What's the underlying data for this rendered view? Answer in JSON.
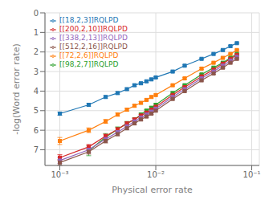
{
  "chart_data": {
    "type": "line",
    "xlabel": "Physical error rate",
    "ylabel": "-log(Word error rate)",
    "log": "x",
    "xlim": [
      0.0007,
      0.12
    ],
    "xticks": [
      {
        "value": 0.001,
        "label": "10⁻³"
      },
      {
        "value": 0.01,
        "label": "10⁻²"
      },
      {
        "value": 0.1,
        "label": "10⁻¹"
      }
    ],
    "ylim": [
      7.8,
      0.0
    ],
    "yticks": [
      0,
      1,
      2,
      3,
      4,
      5,
      6,
      7
    ],
    "grid": true,
    "legend": "upper left",
    "marker": "square",
    "series": [
      {
        "name": "[[18,2,3]]RQLPD",
        "color": "#1f77b4",
        "x": [
          0.001,
          0.002,
          0.003,
          0.004,
          0.005,
          0.006,
          0.007,
          0.008,
          0.009,
          0.01,
          0.015,
          0.02,
          0.03,
          0.04,
          0.05,
          0.06,
          0.07
        ],
        "values": [
          5.15,
          4.7,
          4.3,
          4.1,
          3.9,
          3.7,
          3.6,
          3.5,
          3.4,
          3.3,
          3.0,
          2.7,
          2.35,
          2.1,
          1.9,
          1.7,
          1.55
        ],
        "yerr": [
          0.08,
          0.07,
          0.06,
          0.06,
          0.05,
          0.05,
          0.04,
          0.04,
          0.04,
          0.04,
          0.04,
          0.04,
          0.04,
          0.04,
          0.04,
          0.04,
          0.04
        ]
      },
      {
        "name": "[[72,2,6]]RQLPD",
        "color": "#ff7f0e",
        "x": [
          0.001,
          0.002,
          0.003,
          0.004,
          0.005,
          0.006,
          0.007,
          0.008,
          0.009,
          0.01,
          0.015,
          0.02,
          0.03,
          0.04,
          0.05,
          0.06,
          0.07
        ],
        "values": [
          6.55,
          6.0,
          5.55,
          5.2,
          4.95,
          4.75,
          4.6,
          4.45,
          4.3,
          4.2,
          3.7,
          3.35,
          2.85,
          2.55,
          2.3,
          2.1,
          1.9
        ],
        "yerr": [
          0.18,
          0.12,
          0.1,
          0.08,
          0.07,
          0.06,
          0.06,
          0.05,
          0.05,
          0.05,
          0.04,
          0.04,
          0.04,
          0.04,
          0.04,
          0.04,
          0.04
        ]
      },
      {
        "name": "[[98,2,7]]RQLPD",
        "color": "#2ca02c",
        "x": [
          0.002,
          0.003,
          0.004,
          0.005,
          0.006,
          0.007,
          0.008,
          0.009,
          0.01,
          0.015,
          0.02,
          0.03,
          0.04,
          0.05,
          0.06,
          0.07
        ],
        "values": [
          7.05,
          6.35,
          5.95,
          5.65,
          5.45,
          5.2,
          5.0,
          4.85,
          4.7,
          4.1,
          3.7,
          3.15,
          2.8,
          2.55,
          2.3,
          2.1
        ],
        "yerr": [
          0.25,
          0.18,
          0.12,
          0.1,
          0.08,
          0.07,
          0.06,
          0.06,
          0.06,
          0.05,
          0.04,
          0.04,
          0.04,
          0.04,
          0.04,
          0.04
        ]
      },
      {
        "name": "[[200,2,10]]RQLPD",
        "color": "#d62728",
        "x": [
          0.001,
          0.002,
          0.003,
          0.004,
          0.005,
          0.006,
          0.007,
          0.008,
          0.009,
          0.01,
          0.015,
          0.02,
          0.03,
          0.04,
          0.05,
          0.06,
          0.07
        ],
        "values": [
          7.4,
          6.85,
          6.3,
          5.95,
          5.65,
          5.45,
          5.25,
          5.1,
          4.95,
          4.8,
          4.2,
          3.8,
          3.25,
          2.9,
          2.6,
          2.35,
          2.15
        ],
        "yerr": [
          0.15,
          0.12,
          0.1,
          0.08,
          0.07,
          0.06,
          0.06,
          0.05,
          0.05,
          0.05,
          0.04,
          0.04,
          0.04,
          0.04,
          0.04,
          0.04,
          0.04
        ]
      },
      {
        "name": "[[338,2,13]]RQLPD",
        "color": "#9467bd",
        "x": [
          0.001,
          0.002,
          0.003,
          0.004,
          0.005,
          0.006,
          0.007,
          0.008,
          0.009,
          0.01,
          0.015,
          0.02,
          0.03,
          0.04,
          0.05,
          0.06,
          0.07
        ],
        "values": [
          7.55,
          7.0,
          6.45,
          6.1,
          5.8,
          5.55,
          5.35,
          5.2,
          5.05,
          4.9,
          4.3,
          3.9,
          3.35,
          3.0,
          2.7,
          2.45,
          2.25
        ],
        "yerr": [
          0.15,
          0.12,
          0.1,
          0.08,
          0.07,
          0.06,
          0.06,
          0.05,
          0.05,
          0.05,
          0.04,
          0.04,
          0.04,
          0.04,
          0.04,
          0.04,
          0.04
        ]
      },
      {
        "name": "[[512,2,16]]RQLPD",
        "color": "#8c564b",
        "x": [
          0.001,
          0.002,
          0.003,
          0.004,
          0.005,
          0.006,
          0.007,
          0.008,
          0.009,
          0.01,
          0.015,
          0.02,
          0.03,
          0.04,
          0.05,
          0.06,
          0.07
        ],
        "values": [
          7.65,
          7.1,
          6.55,
          6.2,
          5.9,
          5.65,
          5.45,
          5.3,
          5.15,
          5.0,
          4.4,
          4.0,
          3.45,
          3.1,
          2.8,
          2.55,
          2.35
        ],
        "yerr": [
          0.15,
          0.12,
          0.1,
          0.08,
          0.07,
          0.06,
          0.06,
          0.05,
          0.05,
          0.05,
          0.04,
          0.04,
          0.04,
          0.04,
          0.04,
          0.04,
          0.04
        ]
      }
    ]
  }
}
